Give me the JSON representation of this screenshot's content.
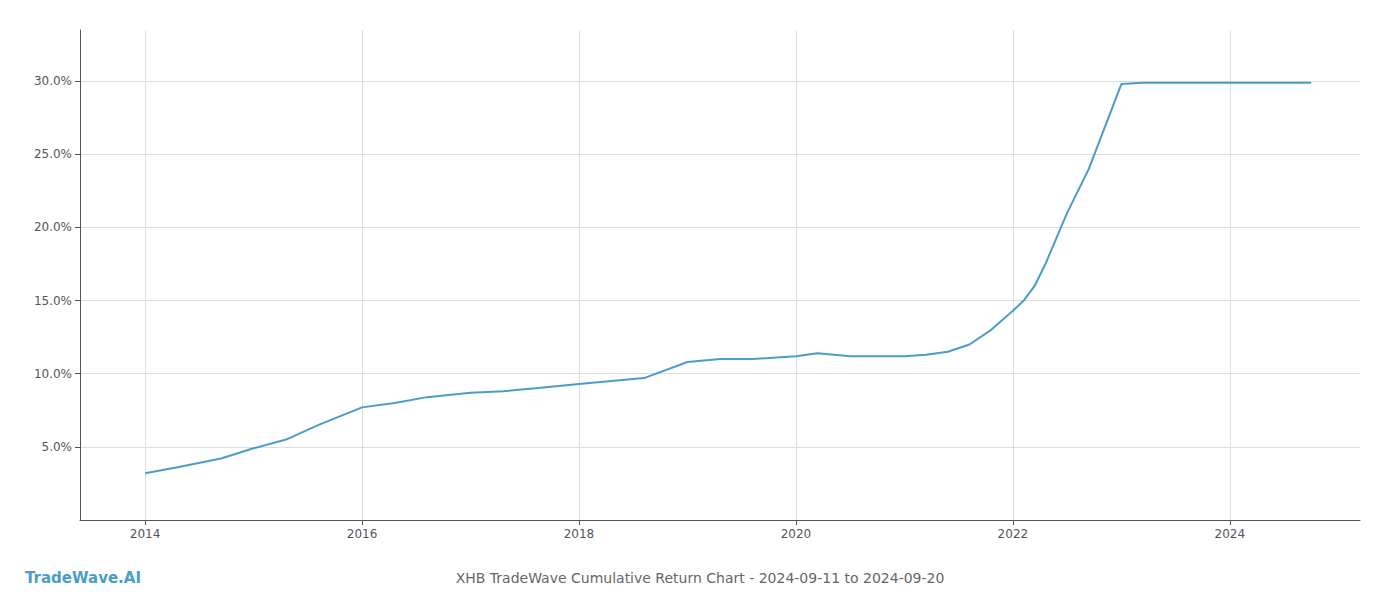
{
  "chart_data": {
    "type": "line",
    "title": "XHB TradeWave Cumulative Return Chart - 2024-09-11 to 2024-09-20",
    "annotations": [
      "TradeWave.AI"
    ],
    "color": "#4a9dc9",
    "x": [
      2014.0,
      2014.3,
      2014.7,
      2015.0,
      2015.3,
      2015.6,
      2016.0,
      2016.3,
      2016.6,
      2017.0,
      2017.3,
      2017.6,
      2018.0,
      2018.3,
      2018.6,
      2019.0,
      2019.3,
      2019.6,
      2020.0,
      2020.2,
      2020.5,
      2020.7,
      2021.0,
      2021.2,
      2021.4,
      2021.6,
      2021.8,
      2022.0,
      2022.1,
      2022.2,
      2022.3,
      2022.5,
      2022.7,
      2023.0,
      2023.2,
      2023.5,
      2024.0,
      2024.5,
      2024.75
    ],
    "values": [
      0.032,
      0.036,
      0.042,
      0.049,
      0.055,
      0.065,
      0.077,
      0.08,
      0.084,
      0.087,
      0.088,
      0.09,
      0.093,
      0.095,
      0.097,
      0.108,
      0.11,
      0.11,
      0.112,
      0.114,
      0.112,
      0.112,
      0.112,
      0.113,
      0.115,
      0.12,
      0.13,
      0.143,
      0.15,
      0.16,
      0.175,
      0.21,
      0.24,
      0.298,
      0.299,
      0.299,
      0.299,
      0.299,
      0.299
    ],
    "xlim": [
      2013.4,
      2025.2
    ],
    "ylim": [
      0.0,
      0.335
    ],
    "xticks": [
      2014,
      2016,
      2018,
      2020,
      2022,
      2024
    ],
    "yticks": [
      {
        "value": 0.05,
        "label": "5.0%"
      },
      {
        "value": 0.1,
        "label": "10.0%"
      },
      {
        "value": 0.15,
        "label": "15.0%"
      },
      {
        "value": 0.2,
        "label": "20.0%"
      },
      {
        "value": 0.25,
        "label": "25.0%"
      },
      {
        "value": 0.3,
        "label": "30.0%"
      }
    ],
    "grid": true
  }
}
